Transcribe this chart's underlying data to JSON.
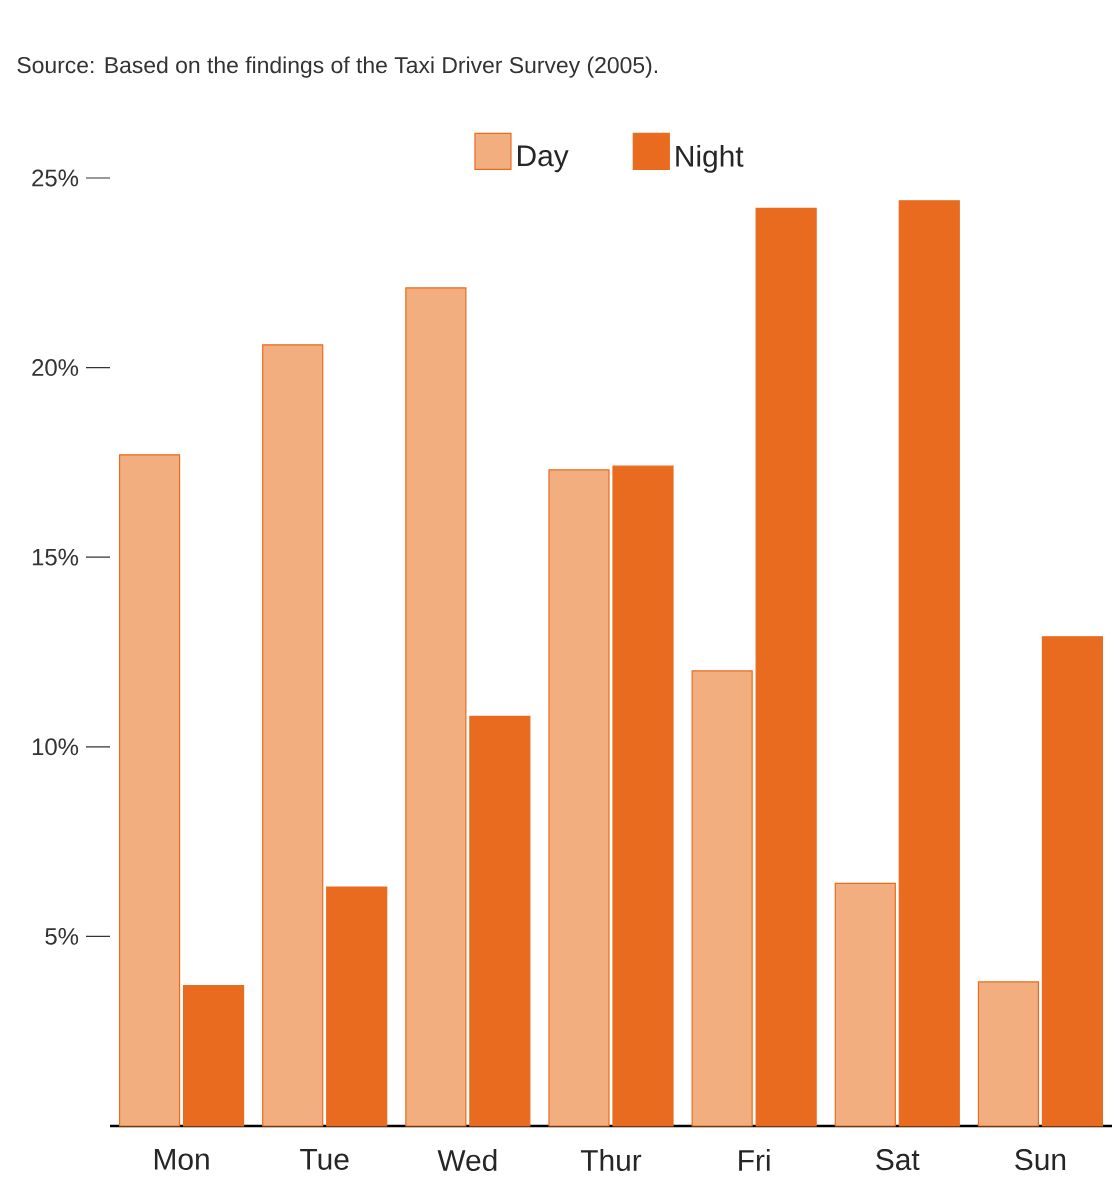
{
  "chart_data": {
    "type": "bar",
    "annotations": [
      "Source: Based on the findings of the Taxi Driver Survey (2005)."
    ],
    "categories": [
      "Mon",
      "Tue",
      "Wed",
      "Thur",
      "Fri",
      "Sat",
      "Sun"
    ],
    "series": [
      {
        "name": "Day",
        "color": "#f2ae7e",
        "values": [
          17.7,
          20.6,
          22.1,
          17.3,
          12.0,
          6.4,
          3.8
        ]
      },
      {
        "name": "Night",
        "color": "#e96b1f",
        "values": [
          3.7,
          6.3,
          10.8,
          17.4,
          24.2,
          24.4,
          12.9
        ]
      }
    ],
    "ylim": [
      0,
      25
    ],
    "yticks": [
      {
        "value": 5,
        "label": "5%"
      },
      {
        "value": 10,
        "label": "10%"
      },
      {
        "value": 15,
        "label": "15%"
      },
      {
        "value": 20,
        "label": "20%"
      },
      {
        "value": 25,
        "label": "25%"
      }
    ],
    "legend": "top",
    "grid": false
  }
}
